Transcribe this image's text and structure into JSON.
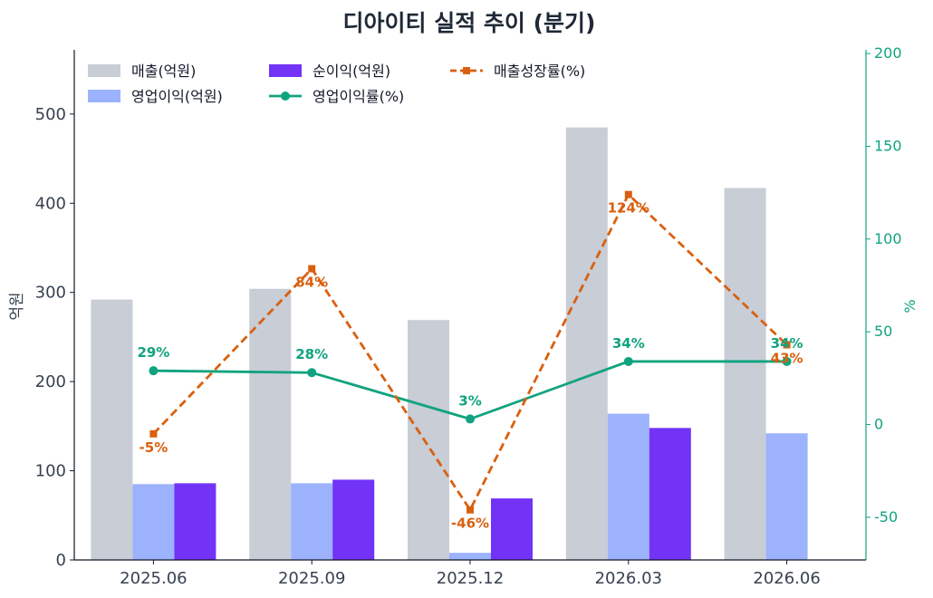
{
  "chart_data": {
    "type": "bar",
    "title": "디아이티 실적 추이 (분기)",
    "categories": [
      "2025.06",
      "2025.09",
      "2025.12",
      "2026.03",
      "2026.06"
    ],
    "ylabel": "억원",
    "ylim": [
      0,
      572
    ],
    "yticks": [
      0,
      100,
      200,
      300,
      400,
      500
    ],
    "y2label": "%",
    "y2lim": [
      -73,
      202
    ],
    "y2ticks": [
      -50,
      0,
      50,
      100,
      150,
      200
    ],
    "grid": false,
    "legend_position": "top-left",
    "series": [
      {
        "name": "매출(억원)",
        "kind": "bar",
        "axis": "left",
        "color": "#c8cdd6",
        "values": [
          292,
          304,
          269,
          485,
          417
        ]
      },
      {
        "name": "영업이익(억원)",
        "kind": "bar",
        "axis": "left",
        "color": "#9db2fd",
        "values": [
          85,
          86,
          8,
          164,
          142
        ]
      },
      {
        "name": "순이익(억원)",
        "kind": "bar",
        "axis": "left",
        "color": "#7233f6",
        "values": [
          86,
          90,
          69,
          148,
          0
        ]
      },
      {
        "name": "영업이익률(%)",
        "kind": "line",
        "axis": "right",
        "color": "#10a37f",
        "values": [
          29,
          28,
          3,
          34,
          34
        ],
        "labels": [
          "29%",
          "28%",
          "3%",
          "34%",
          "34%"
        ]
      },
      {
        "name": "매출성장률(%)",
        "kind": "dashed-line",
        "axis": "right",
        "color": "#d9600f",
        "values": [
          -5,
          84,
          -46,
          124,
          43
        ],
        "labels": [
          "-5%",
          "84%",
          "-46%",
          "124%",
          "43%"
        ]
      }
    ]
  }
}
